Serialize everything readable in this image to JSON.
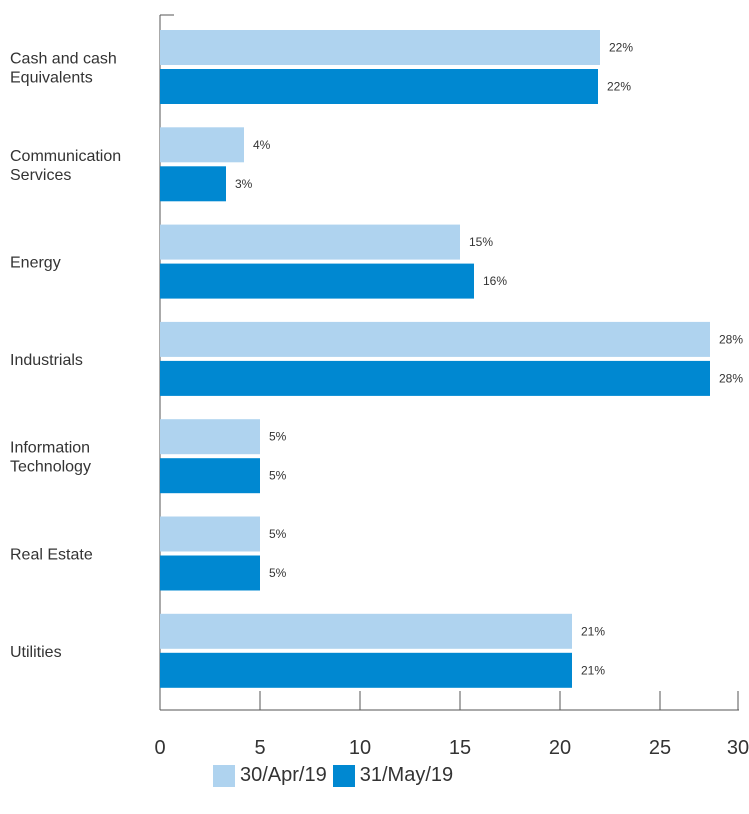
{
  "chart_data": {
    "type": "bar",
    "orientation": "horizontal",
    "categories": [
      [
        "Cash and cash",
        "Equivalents"
      ],
      [
        "Communication",
        "Services"
      ],
      [
        "Energy"
      ],
      [
        "Industrials"
      ],
      [
        "Information",
        "Technology"
      ],
      [
        "Real Estate"
      ],
      [
        "Utilities"
      ]
    ],
    "series": [
      {
        "name": "30/Apr/19",
        "color": "#afd3ef",
        "values": [
          22,
          4.2,
          15,
          27.5,
          5,
          5,
          20.6
        ],
        "labels": [
          "22%",
          "4%",
          "15%",
          "28%",
          "5%",
          "5%",
          "21%"
        ]
      },
      {
        "name": "31/May/19",
        "color": "#0088d1",
        "values": [
          21.9,
          3.3,
          15.7,
          27.5,
          5,
          5,
          20.6
        ],
        "labels": [
          "22%",
          "3%",
          "16%",
          "28%",
          "5%",
          "5%",
          "21%"
        ]
      }
    ],
    "xlim": [
      0,
      29
    ],
    "xticks": [
      "0",
      "5",
      "10",
      "15",
      "20",
      "25",
      "30"
    ],
    "xtick_values": [
      0,
      5,
      10,
      15,
      20,
      25,
      30
    ],
    "grid": false,
    "legend_position": "bottom"
  }
}
